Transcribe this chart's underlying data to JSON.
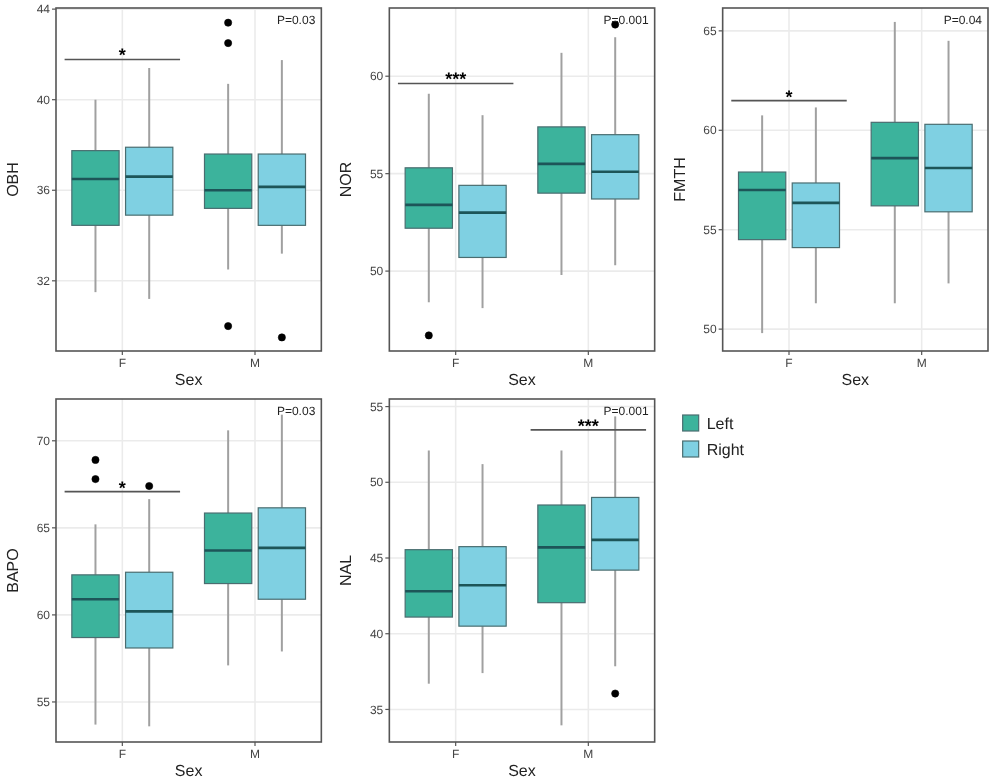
{
  "chart_data": [
    {
      "type": "box",
      "xlabel": "Sex",
      "ylabel": "OBH",
      "categories": [
        "F",
        "M"
      ],
      "ylim": [
        28.9,
        44.05
      ],
      "yticks": [
        32,
        36,
        40,
        44
      ],
      "grid": true,
      "legend": false,
      "annotations": [
        "*",
        "P=0.03"
      ],
      "series": [
        {
          "color": "#3cb39c",
          "boxes": [
            {
              "low": 31.5,
              "q1": 34.45,
              "median": 36.5,
              "q3": 37.75,
              "high": 40
            },
            {
              "low": 32.5,
              "q1": 35.2,
              "median": 36,
              "q3": 37.6,
              "high": 40.7,
              "outliers": [
                43.4,
                42.5,
                30
              ]
            }
          ]
        },
        {
          "color": "#7fd0e2",
          "boxes": [
            {
              "low": 31.2,
              "q1": 34.9,
              "median": 36.6,
              "q3": 37.9,
              "high": 41.4
            },
            {
              "low": 33.2,
              "q1": 34.45,
              "median": 36.15,
              "q3": 37.6,
              "high": 41.75,
              "outliers": [
                29.5
              ]
            }
          ]
        }
      ]
    },
    {
      "type": "box",
      "xlabel": "Sex",
      "ylabel": "NOR",
      "categories": [
        "F",
        "M"
      ],
      "ylim": [
        45.9,
        63.5
      ],
      "yticks": [
        50,
        55,
        60
      ],
      "grid": true,
      "legend": false,
      "annotations": [
        "***",
        "P=0.001"
      ],
      "series": [
        {
          "color": "#3cb39c",
          "boxes": [
            {
              "low": 48.4,
              "q1": 52.2,
              "median": 53.4,
              "q3": 55.3,
              "high": 59.1,
              "outliers": [
                46.7
              ]
            },
            {
              "low": 49.8,
              "q1": 54,
              "median": 55.5,
              "q3": 57.4,
              "high": 61.2
            }
          ]
        },
        {
          "color": "#7fd0e2",
          "boxes": [
            {
              "low": 48.1,
              "q1": 50.7,
              "median": 53,
              "q3": 54.4,
              "high": 58
            },
            {
              "low": 50.3,
              "q1": 53.7,
              "median": 55.1,
              "q3": 57,
              "high": 62,
              "outliers": [
                62.65
              ]
            }
          ]
        }
      ]
    },
    {
      "type": "box",
      "xlabel": "Sex",
      "ylabel": "FMTH",
      "categories": [
        "F",
        "M"
      ],
      "ylim": [
        48.9,
        66.15
      ],
      "yticks": [
        50,
        55,
        60,
        65
      ],
      "grid": true,
      "legend": false,
      "annotations": [
        "*",
        "P=0.04"
      ],
      "series": [
        {
          "color": "#3cb39c",
          "boxes": [
            {
              "low": 49.8,
              "q1": 54.5,
              "median": 57,
              "q3": 57.9,
              "high": 60.75
            },
            {
              "low": 51.3,
              "q1": 56.2,
              "median": 58.6,
              "q3": 60.4,
              "high": 65.45
            }
          ]
        },
        {
          "color": "#7fd0e2",
          "boxes": [
            {
              "low": 51.3,
              "q1": 54.1,
              "median": 56.35,
              "q3": 57.35,
              "high": 61.15
            },
            {
              "low": 52.3,
              "q1": 55.9,
              "median": 58.1,
              "q3": 60.3,
              "high": 64.5
            }
          ]
        }
      ]
    },
    {
      "type": "box",
      "xlabel": "Sex",
      "ylabel": "BAPO",
      "categories": [
        "F",
        "M"
      ],
      "ylim": [
        52.7,
        72.4
      ],
      "yticks": [
        55,
        60,
        65,
        70
      ],
      "grid": true,
      "legend": false,
      "annotations": [
        "*",
        "P=0.03"
      ],
      "series": [
        {
          "color": "#3cb39c",
          "boxes": [
            {
              "low": 53.7,
              "q1": 58.7,
              "median": 60.9,
              "q3": 62.3,
              "high": 65.2,
              "outliers": [
                68.9,
                67.8
              ]
            },
            {
              "low": 57.1,
              "q1": 61.8,
              "median": 63.7,
              "q3": 65.85,
              "high": 70.6
            }
          ]
        },
        {
          "color": "#7fd0e2",
          "boxes": [
            {
              "low": 53.6,
              "q1": 58.1,
              "median": 60.2,
              "q3": 62.45,
              "high": 66.65,
              "outliers": [
                67.4
              ]
            },
            {
              "low": 57.9,
              "q1": 60.9,
              "median": 63.85,
              "q3": 66.15,
              "high": 71.5
            }
          ]
        }
      ]
    },
    {
      "type": "box",
      "xlabel": "Sex",
      "ylabel": "NAL",
      "categories": [
        "F",
        "M"
      ],
      "ylim": [
        32.85,
        55.5
      ],
      "yticks": [
        35,
        40,
        45,
        50,
        55
      ],
      "grid": true,
      "legend": "right",
      "annotations": [
        "***",
        "P=0.001"
      ],
      "series": [
        {
          "name": "Left",
          "color": "#3cb39c",
          "boxes": [
            {
              "low": 36.7,
              "q1": 41.1,
              "median": 42.8,
              "q3": 45.55,
              "high": 52.1
            },
            {
              "low": 33.95,
              "q1": 42.05,
              "median": 45.7,
              "q3": 48.5,
              "high": 52.1
            }
          ]
        },
        {
          "name": "Right",
          "color": "#7fd0e2",
          "boxes": [
            {
              "low": 37.4,
              "q1": 40.5,
              "median": 43.2,
              "q3": 45.75,
              "high": 51.2
            },
            {
              "low": 37.85,
              "q1": 44.2,
              "median": 46.2,
              "q3": 49,
              "high": 54.35,
              "outliers": [
                36.05
              ]
            }
          ]
        }
      ]
    }
  ]
}
